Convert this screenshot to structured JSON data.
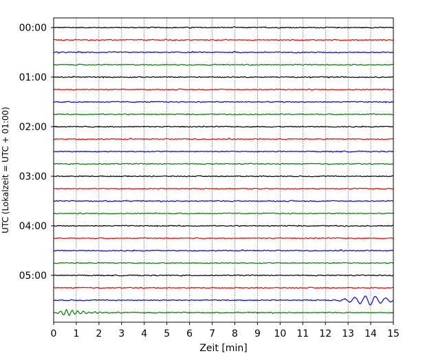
{
  "chart_data": {
    "type": "line",
    "title": "",
    "xlabel": "Zeit  [min]",
    "ylabel": "UTC (Lokalzeit = UTC + 01:00)",
    "xlim": [
      0,
      15
    ],
    "x_ticks": [
      0,
      1,
      2,
      3,
      4,
      5,
      6,
      7,
      8,
      9,
      10,
      11,
      12,
      13,
      14,
      15
    ],
    "x_tick_labels": [
      "0",
      "1",
      "2",
      "3",
      "4",
      "5",
      "6",
      "7",
      "8",
      "9",
      "10",
      "11",
      "12",
      "13",
      "14",
      "15"
    ],
    "y_ticks": [
      {
        "hour": 0,
        "label": "00:00"
      },
      {
        "hour": 1,
        "label": "01:00"
      },
      {
        "hour": 2,
        "label": "02:00"
      },
      {
        "hour": 3,
        "label": "03:00"
      },
      {
        "hour": 4,
        "label": "04:00"
      },
      {
        "hour": 5,
        "label": "05:00"
      }
    ],
    "grid": "vertical dotted at each minute",
    "legend": "none",
    "colors": [
      "#000000",
      "#ff0000",
      "#0000ff",
      "#008000"
    ],
    "series": [
      {
        "start": "00:00",
        "color": "#000000"
      },
      {
        "start": "00:15",
        "color": "#ff0000"
      },
      {
        "start": "00:30",
        "color": "#0000ff"
      },
      {
        "start": "00:45",
        "color": "#008000"
      },
      {
        "start": "01:00",
        "color": "#000000"
      },
      {
        "start": "01:15",
        "color": "#ff0000"
      },
      {
        "start": "01:30",
        "color": "#0000ff"
      },
      {
        "start": "01:45",
        "color": "#008000"
      },
      {
        "start": "02:00",
        "color": "#000000"
      },
      {
        "start": "02:15",
        "color": "#ff0000"
      },
      {
        "start": "02:30",
        "color": "#0000ff"
      },
      {
        "start": "02:45",
        "color": "#008000"
      },
      {
        "start": "03:00",
        "color": "#000000"
      },
      {
        "start": "03:15",
        "color": "#ff0000"
      },
      {
        "start": "03:30",
        "color": "#0000ff"
      },
      {
        "start": "03:45",
        "color": "#008000"
      },
      {
        "start": "04:00",
        "color": "#000000"
      },
      {
        "start": "04:15",
        "color": "#ff0000"
      },
      {
        "start": "04:30",
        "color": "#0000ff"
      },
      {
        "start": "04:45",
        "color": "#008000"
      },
      {
        "start": "05:00",
        "color": "#000000"
      },
      {
        "start": "05:15",
        "color": "#ff0000"
      },
      {
        "start": "05:30",
        "color": "#0000ff",
        "event": {
          "onset_min": 12.0,
          "peak_min": 14.0
        }
      },
      {
        "start": "05:45",
        "color": "#008000",
        "event": {
          "onset_min": 0.0,
          "peak_min": 0.5
        }
      }
    ]
  }
}
